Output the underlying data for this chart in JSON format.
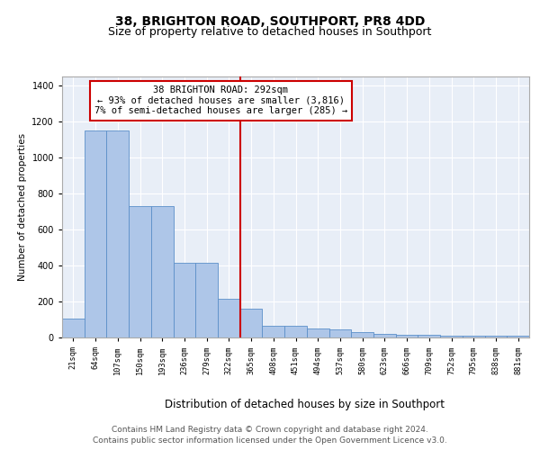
{
  "title1": "38, BRIGHTON ROAD, SOUTHPORT, PR8 4DD",
  "title2": "Size of property relative to detached houses in Southport",
  "xlabel": "Distribution of detached houses by size in Southport",
  "ylabel": "Number of detached properties",
  "categories": [
    "21sqm",
    "64sqm",
    "107sqm",
    "150sqm",
    "193sqm",
    "236sqm",
    "279sqm",
    "322sqm",
    "365sqm",
    "408sqm",
    "451sqm",
    "494sqm",
    "537sqm",
    "580sqm",
    "623sqm",
    "666sqm",
    "709sqm",
    "752sqm",
    "795sqm",
    "838sqm",
    "881sqm"
  ],
  "values": [
    107,
    1150,
    1150,
    730,
    730,
    415,
    415,
    215,
    160,
    65,
    65,
    50,
    45,
    30,
    20,
    15,
    15,
    10,
    10,
    10,
    10
  ],
  "bar_color": "#aec6e8",
  "bar_edge_color": "#5b8fc9",
  "property_line_x": 7.5,
  "property_line_color": "#cc0000",
  "annotation_text": "38 BRIGHTON ROAD: 292sqm\n← 93% of detached houses are smaller (3,816)\n7% of semi-detached houses are larger (285) →",
  "annotation_box_color": "#ffffff",
  "annotation_box_edge": "#cc0000",
  "ylim": [
    0,
    1450
  ],
  "yticks": [
    0,
    200,
    400,
    600,
    800,
    1000,
    1200,
    1400
  ],
  "footer1": "Contains HM Land Registry data © Crown copyright and database right 2024.",
  "footer2": "Contains public sector information licensed under the Open Government Licence v3.0.",
  "fig_bg_color": "#ffffff",
  "plot_bg_color": "#e8eef7",
  "title1_fontsize": 10,
  "title2_fontsize": 9,
  "xlabel_fontsize": 8.5,
  "ylabel_fontsize": 7.5,
  "footer_fontsize": 6.5,
  "annotation_fontsize": 7.5
}
